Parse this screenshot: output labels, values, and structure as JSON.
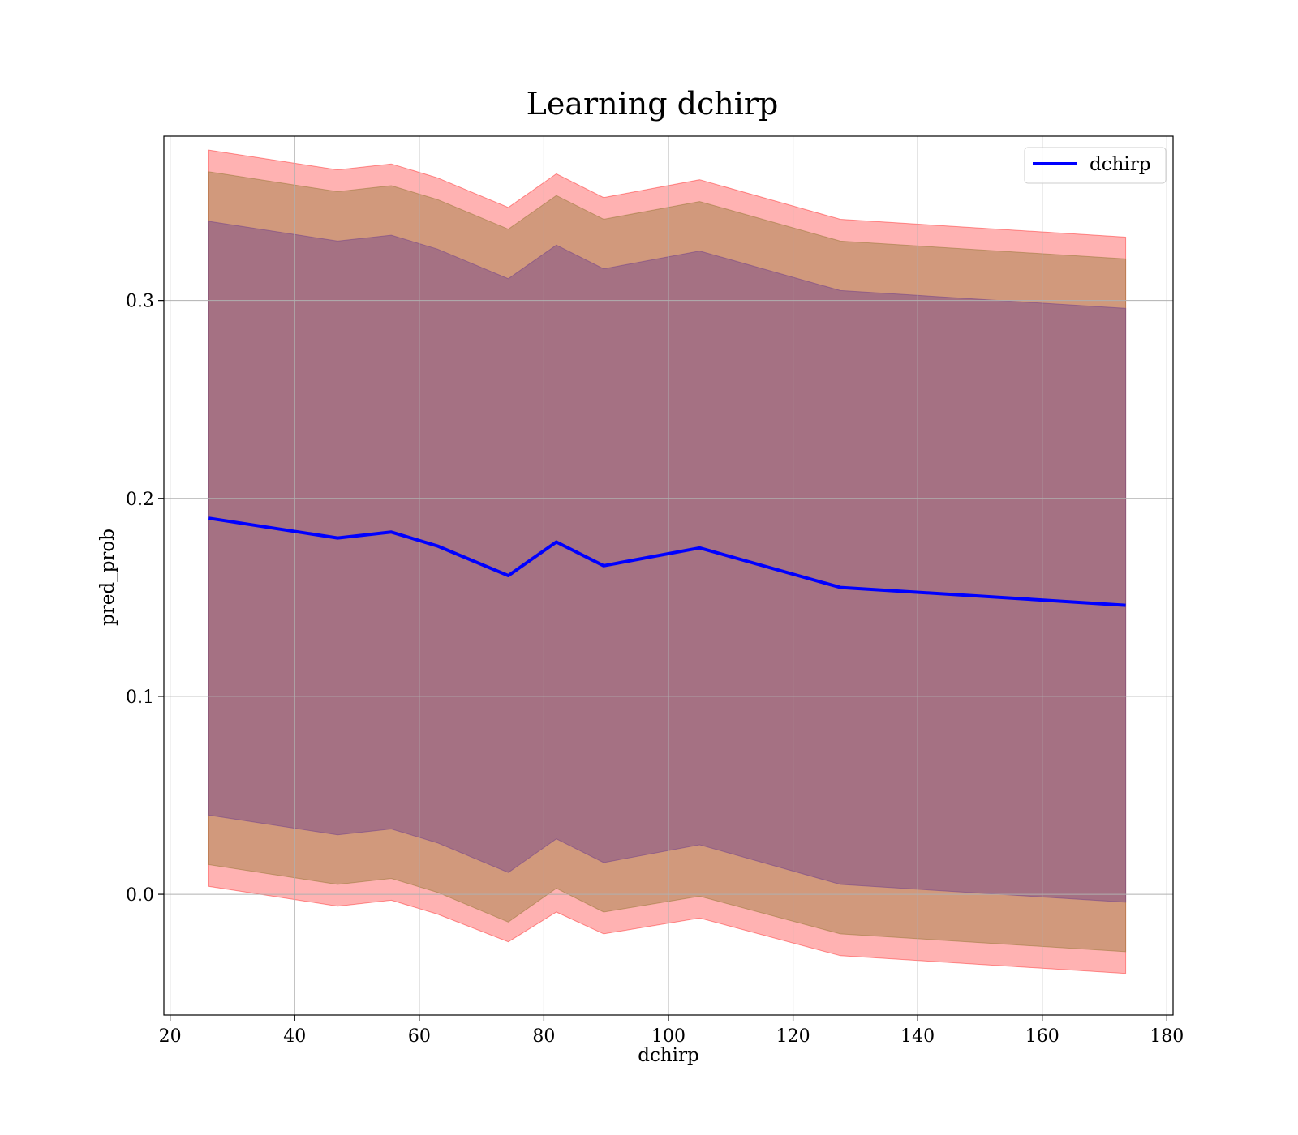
{
  "chart_data": {
    "type": "line",
    "title": "Learning dchirp",
    "xlabel": "dchirp",
    "ylabel": "pred_prob",
    "xlim": [
      19,
      181
    ],
    "ylim": [
      -0.061,
      0.383
    ],
    "xticks": [
      20,
      40,
      60,
      80,
      100,
      120,
      140,
      160,
      180
    ],
    "xtick_labels": [
      "20",
      "40",
      "60",
      "80",
      "100",
      "120",
      "140",
      "160",
      "180"
    ],
    "yticks": [
      0.0,
      0.1,
      0.2,
      0.3
    ],
    "ytick_labels": [
      "0.0",
      "0.1",
      "0.2",
      "0.3"
    ],
    "grid": true,
    "legend_position": "top-right",
    "x": [
      26.2,
      46.9,
      55.5,
      62.9,
      74.3,
      82.0,
      89.6,
      105.0,
      127.6,
      173.4
    ],
    "series": [
      {
        "name": "dchirp",
        "color": "#0000ff",
        "values": [
          0.19,
          0.18,
          0.183,
          0.176,
          0.161,
          0.178,
          0.166,
          0.175,
          0.155,
          0.146
        ]
      }
    ],
    "bands": [
      {
        "lower": [
          0.004,
          -0.006,
          -0.003,
          -0.01,
          -0.024,
          -0.009,
          -0.02,
          -0.012,
          -0.031,
          -0.04
        ],
        "upper": [
          0.376,
          0.366,
          0.369,
          0.362,
          0.347,
          0.364,
          0.352,
          0.361,
          0.341,
          0.332
        ],
        "color": "#ff0000",
        "opacity": 0.3
      },
      {
        "lower": [
          0.015,
          0.005,
          0.008,
          0.001,
          -0.014,
          0.003,
          -0.009,
          -0.001,
          -0.02,
          -0.029
        ],
        "upper": [
          0.365,
          0.355,
          0.358,
          0.351,
          0.336,
          0.353,
          0.341,
          0.35,
          0.33,
          0.321
        ],
        "color": "#9a7a3a",
        "opacity": 0.45
      },
      {
        "lower": [
          0.04,
          0.03,
          0.033,
          0.026,
          0.011,
          0.028,
          0.016,
          0.025,
          0.005,
          -0.004
        ],
        "upper": [
          0.34,
          0.33,
          0.333,
          0.326,
          0.311,
          0.328,
          0.316,
          0.325,
          0.305,
          0.296
        ],
        "color": "#7a4a8a",
        "opacity": 0.5
      }
    ]
  }
}
